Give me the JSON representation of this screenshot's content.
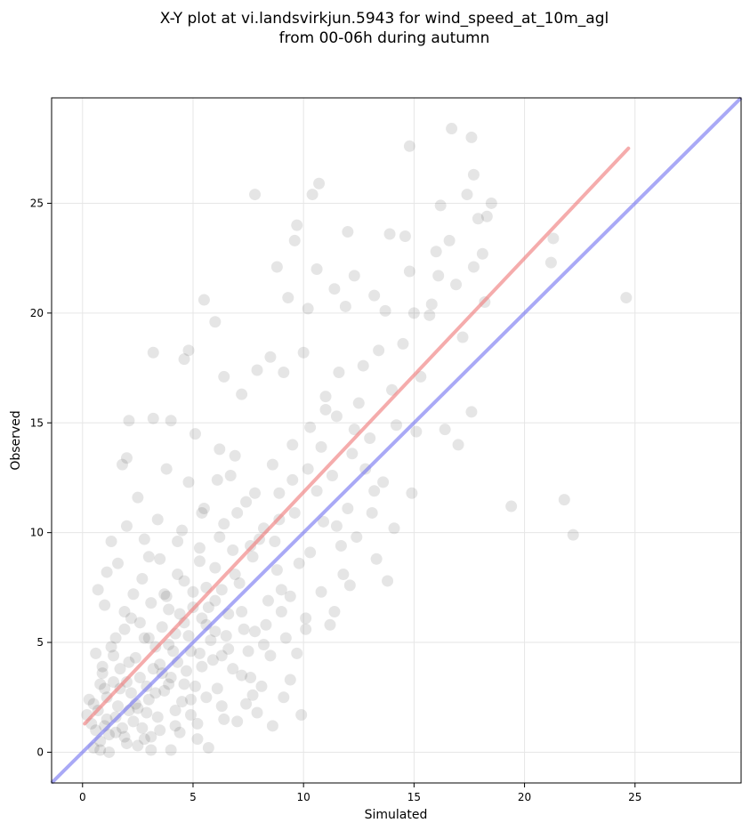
{
  "chart_data": {
    "type": "scatter",
    "title_line1": "X-Y plot at vi.landsvirkjun.5943 for wind_speed_at_10m_agl",
    "title_line2": "from 00-06h during autumn",
    "xlabel": "Simulated",
    "ylabel": "Observed",
    "xlim": [
      -1.4,
      29.8
    ],
    "ylim": [
      -1.4,
      29.8
    ],
    "xticks": [
      0,
      5,
      10,
      15,
      20,
      25
    ],
    "yticks": [
      0,
      5,
      10,
      15,
      20,
      25
    ],
    "grid": true,
    "point_color": "#000000",
    "point_opacity": 0.1,
    "fit_line": {
      "color": "#f08080",
      "x": [
        0.1,
        24.7
      ],
      "y": [
        1.3,
        27.5
      ]
    },
    "identity_line": {
      "color": "#6f6ff0",
      "x": [
        -1.4,
        29.8
      ],
      "y": [
        -1.4,
        29.8
      ]
    },
    "points": [
      [
        0.5,
        0.2
      ],
      [
        0.8,
        0.5
      ],
      [
        1.0,
        1.2
      ],
      [
        1.2,
        0.8
      ],
      [
        1.5,
        1.6
      ],
      [
        0.7,
        1.9
      ],
      [
        1.1,
        2.5
      ],
      [
        1.8,
        1.1
      ],
      [
        2.0,
        0.4
      ],
      [
        2.3,
        1.4
      ],
      [
        1.4,
        3.2
      ],
      [
        0.9,
        3.6
      ],
      [
        1.7,
        2.9
      ],
      [
        2.4,
        2.2
      ],
      [
        2.6,
        3.4
      ],
      [
        2.1,
        4.1
      ],
      [
        0.6,
        4.5
      ],
      [
        1.3,
        4.8
      ],
      [
        2.9,
        1.8
      ],
      [
        3.1,
        0.7
      ],
      [
        3.3,
        2.7
      ],
      [
        3.5,
        4.0
      ],
      [
        2.8,
        5.2
      ],
      [
        1.9,
        5.6
      ],
      [
        1.0,
        6.7
      ],
      [
        2.2,
        6.1
      ],
      [
        3.6,
        5.7
      ],
      [
        3.9,
        3.1
      ],
      [
        4.2,
        1.9
      ],
      [
        4.4,
        0.9
      ],
      [
        4.1,
        4.6
      ],
      [
        4.7,
        3.7
      ],
      [
        4.9,
        2.4
      ],
      [
        5.2,
        1.3
      ],
      [
        5.4,
        3.9
      ],
      [
        4.6,
        5.9
      ],
      [
        5.0,
        6.6
      ],
      [
        3.7,
        7.2
      ],
      [
        2.7,
        7.9
      ],
      [
        1.6,
        8.6
      ],
      [
        3.0,
        8.9
      ],
      [
        4.3,
        8.1
      ],
      [
        5.6,
        7.5
      ],
      [
        5.8,
        5.1
      ],
      [
        6.1,
        2.9
      ],
      [
        6.3,
        4.4
      ],
      [
        6.6,
        6.3
      ],
      [
        6.0,
        8.4
      ],
      [
        5.3,
        9.3
      ],
      [
        4.5,
        10.1
      ],
      [
        3.4,
        10.6
      ],
      [
        2.5,
        11.6
      ],
      [
        3.8,
        12.9
      ],
      [
        4.8,
        12.3
      ],
      [
        5.5,
        11.1
      ],
      [
        6.4,
        10.4
      ],
      [
        6.8,
        9.2
      ],
      [
        7.1,
        7.7
      ],
      [
        7.3,
        5.6
      ],
      [
        7.6,
        3.4
      ],
      [
        7.9,
        1.8
      ],
      [
        8.2,
        4.9
      ],
      [
        8.4,
        6.9
      ],
      [
        7.7,
        8.9
      ],
      [
        7.4,
        11.4
      ],
      [
        6.7,
        12.6
      ],
      [
        6.2,
        13.8
      ],
      [
        5.1,
        14.5
      ],
      [
        4.0,
        15.1
      ],
      [
        3.2,
        15.2
      ],
      [
        2.1,
        15.1
      ],
      [
        2.0,
        13.4
      ],
      [
        1.8,
        13.1
      ],
      [
        8.7,
        9.6
      ],
      [
        9.0,
        7.4
      ],
      [
        9.2,
        5.2
      ],
      [
        9.4,
        3.3
      ],
      [
        8.9,
        11.8
      ],
      [
        9.6,
        10.9
      ],
      [
        9.8,
        8.6
      ],
      [
        10.1,
        6.1
      ],
      [
        10.3,
        9.1
      ],
      [
        10.6,
        11.9
      ],
      [
        10.8,
        13.9
      ],
      [
        11.0,
        15.6
      ],
      [
        11.3,
        12.6
      ],
      [
        11.5,
        10.3
      ],
      [
        11.8,
        8.1
      ],
      [
        12.0,
        11.1
      ],
      [
        12.2,
        13.6
      ],
      [
        12.5,
        15.9
      ],
      [
        12.7,
        17.6
      ],
      [
        13.0,
        14.3
      ],
      [
        13.2,
        11.9
      ],
      [
        13.4,
        18.3
      ],
      [
        13.7,
        20.1
      ],
      [
        14.0,
        16.5
      ],
      [
        14.2,
        14.9
      ],
      [
        14.5,
        18.6
      ],
      [
        14.8,
        21.9
      ],
      [
        14.6,
        23.5
      ],
      [
        15.0,
        20.0
      ],
      [
        15.3,
        17.1
      ],
      [
        15.7,
        19.9
      ],
      [
        16.0,
        22.8
      ],
      [
        16.2,
        24.9
      ],
      [
        16.6,
        23.3
      ],
      [
        16.9,
        21.3
      ],
      [
        17.2,
        18.9
      ],
      [
        17.4,
        25.4
      ],
      [
        17.7,
        22.1
      ],
      [
        17.9,
        24.3
      ],
      [
        18.1,
        22.7
      ],
      [
        18.3,
        24.4
      ],
      [
        18.5,
        25.0
      ],
      [
        18.2,
        20.5
      ],
      [
        17.6,
        15.5
      ],
      [
        17.0,
        14.0
      ],
      [
        16.4,
        14.7
      ],
      [
        15.1,
        14.6
      ],
      [
        14.9,
        11.8
      ],
      [
        14.1,
        10.2
      ],
      [
        13.8,
        7.8
      ],
      [
        13.3,
        8.8
      ],
      [
        12.1,
        7.6
      ],
      [
        11.2,
        5.8
      ],
      [
        9.9,
        1.7
      ],
      [
        8.6,
        1.2
      ],
      [
        7.0,
        1.4
      ],
      [
        5.7,
        0.2
      ],
      [
        16.7,
        28.4
      ],
      [
        17.6,
        28.0
      ],
      [
        14.8,
        27.6
      ],
      [
        17.7,
        26.3
      ],
      [
        10.7,
        25.9
      ],
      [
        10.4,
        25.4
      ],
      [
        7.8,
        25.4
      ],
      [
        9.7,
        24.0
      ],
      [
        13.9,
        23.6
      ],
      [
        12.0,
        23.7
      ],
      [
        9.6,
        23.3
      ],
      [
        8.8,
        22.1
      ],
      [
        10.6,
        22.0
      ],
      [
        11.4,
        21.1
      ],
      [
        12.3,
        21.7
      ],
      [
        9.3,
        20.7
      ],
      [
        10.2,
        20.2
      ],
      [
        11.9,
        20.3
      ],
      [
        13.2,
        20.8
      ],
      [
        5.5,
        20.6
      ],
      [
        6.0,
        19.6
      ],
      [
        8.5,
        18.0
      ],
      [
        7.9,
        17.4
      ],
      [
        9.1,
        17.3
      ],
      [
        10.0,
        18.2
      ],
      [
        4.8,
        18.3
      ],
      [
        4.6,
        17.9
      ],
      [
        3.2,
        18.2
      ],
      [
        6.4,
        17.1
      ],
      [
        7.2,
        16.3
      ],
      [
        22.2,
        9.9
      ],
      [
        21.8,
        11.5
      ],
      [
        24.6,
        20.7
      ],
      [
        21.2,
        22.3
      ],
      [
        21.3,
        23.4
      ],
      [
        16.1,
        21.7
      ],
      [
        15.8,
        20.4
      ],
      [
        19.4,
        11.2
      ],
      [
        1.2,
        0.0
      ],
      [
        0.8,
        0.1
      ],
      [
        2.5,
        0.3
      ],
      [
        3.1,
        0.1
      ],
      [
        4.0,
        0.1
      ],
      [
        5.2,
        0.6
      ],
      [
        6.4,
        1.5
      ],
      [
        0.4,
        1.3
      ],
      [
        0.3,
        2.4
      ],
      [
        0.9,
        3.9
      ],
      [
        1.5,
        5.2
      ],
      [
        2.3,
        7.2
      ],
      [
        3.1,
        6.8
      ],
      [
        3.9,
        6.5
      ],
      [
        4.6,
        7.8
      ],
      [
        5.3,
        8.7
      ],
      [
        6.2,
        9.8
      ],
      [
        7.0,
        10.9
      ],
      [
        7.8,
        11.8
      ],
      [
        8.6,
        13.1
      ],
      [
        9.5,
        14.0
      ],
      [
        10.3,
        14.8
      ],
      [
        11.0,
        16.2
      ],
      [
        11.6,
        17.3
      ],
      [
        6.9,
        13.5
      ],
      [
        6.1,
        12.4
      ],
      [
        5.4,
        10.9
      ],
      [
        4.3,
        9.6
      ],
      [
        3.5,
        8.8
      ],
      [
        2.8,
        9.7
      ],
      [
        2.0,
        10.3
      ],
      [
        1.3,
        9.6
      ],
      [
        1.1,
        8.2
      ],
      [
        0.7,
        7.4
      ],
      [
        1.9,
        6.4
      ],
      [
        2.6,
        5.9
      ],
      [
        3.3,
        4.8
      ],
      [
        4.0,
        3.4
      ],
      [
        4.5,
        2.3
      ],
      [
        5.1,
        3.0
      ],
      [
        5.9,
        4.2
      ],
      [
        6.5,
        5.3
      ],
      [
        7.2,
        6.4
      ],
      [
        7.8,
        5.5
      ],
      [
        8.5,
        4.4
      ],
      [
        9.1,
        2.5
      ],
      [
        8.1,
        3.0
      ],
      [
        7.4,
        2.2
      ],
      [
        6.8,
        3.8
      ],
      [
        6.0,
        6.9
      ],
      [
        5.6,
        5.8
      ],
      [
        4.9,
        4.6
      ],
      [
        4.2,
        5.4
      ],
      [
        3.6,
        3.6
      ],
      [
        2.9,
        3.0
      ],
      [
        2.2,
        2.7
      ],
      [
        1.6,
        2.1
      ],
      [
        1.1,
        1.5
      ],
      [
        0.6,
        1.0
      ],
      [
        1.9,
        0.7
      ],
      [
        2.7,
        1.1
      ],
      [
        3.4,
        1.6
      ],
      [
        9.5,
        12.4
      ],
      [
        10.2,
        12.9
      ],
      [
        10.9,
        10.5
      ],
      [
        11.7,
        9.4
      ],
      [
        12.4,
        9.8
      ],
      [
        13.1,
        10.9
      ],
      [
        13.6,
        12.3
      ],
      [
        12.8,
        12.9
      ],
      [
        12.3,
        14.7
      ],
      [
        11.5,
        15.3
      ],
      [
        8.0,
        9.7
      ],
      [
        8.8,
        8.3
      ],
      [
        9.4,
        7.1
      ],
      [
        10.1,
        5.6
      ],
      [
        10.8,
        7.3
      ],
      [
        11.4,
        6.4
      ],
      [
        7.5,
        4.6
      ],
      [
        8.3,
        5.8
      ],
      [
        9.0,
        6.4
      ],
      [
        9.7,
        4.5
      ],
      [
        3.0,
        5.2
      ],
      [
        3.8,
        7.1
      ],
      [
        4.4,
        6.3
      ],
      [
        5.0,
        7.3
      ],
      [
        5.7,
        6.6
      ],
      [
        6.3,
        7.4
      ],
      [
        6.9,
        8.1
      ],
      [
        7.6,
        9.4
      ],
      [
        8.2,
        10.2
      ],
      [
        8.9,
        10.6
      ],
      [
        2.4,
        4.3
      ],
      [
        1.7,
        3.8
      ],
      [
        1.0,
        2.9
      ],
      [
        0.5,
        2.2
      ],
      [
        0.2,
        1.7
      ],
      [
        0.8,
        3.1
      ],
      [
        1.4,
        4.4
      ],
      [
        2.0,
        3.2
      ],
      [
        2.5,
        2.0
      ],
      [
        3.0,
        2.4
      ],
      [
        3.7,
        2.8
      ],
      [
        4.3,
        4.1
      ],
      [
        4.8,
        5.3
      ],
      [
        5.4,
        6.1
      ],
      [
        6.0,
        5.5
      ],
      [
        6.6,
        4.7
      ],
      [
        7.2,
        3.5
      ],
      [
        7.7,
        2.6
      ],
      [
        6.3,
        2.1
      ],
      [
        5.6,
        2.5
      ],
      [
        4.9,
        1.7
      ],
      [
        4.2,
        1.2
      ],
      [
        3.5,
        1.0
      ],
      [
        2.8,
        0.6
      ],
      [
        2.1,
        1.9
      ],
      [
        1.5,
        0.9
      ],
      [
        3.2,
        3.8
      ],
      [
        3.9,
        4.9
      ],
      [
        4.6,
        3.1
      ],
      [
        5.3,
        4.5
      ]
    ]
  }
}
